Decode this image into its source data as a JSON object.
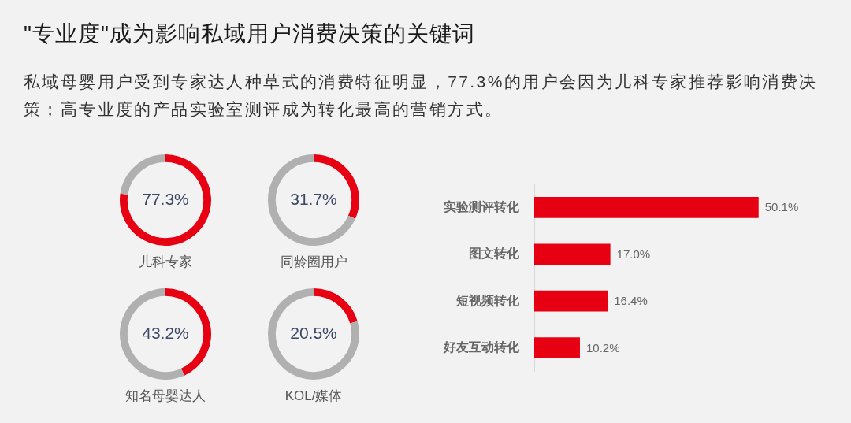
{
  "chart_data": [
    {
      "type": "other",
      "title": "\"专业度\"成为影响私域用户消费决策的关键词",
      "subtitle": "私域母婴用户受到专家达人种草式的消费特征明显，77.3%的用户会因为儿科专家推荐影响消费决策；高专业度的产品实验室测评成为转化最高的营销方式。"
    },
    {
      "type": "donut",
      "title": "儿科专家",
      "categories": [
        null,
        null
      ],
      "values": [
        77.3,
        22.7
      ],
      "value_labels": [
        "77.3%",
        null
      ],
      "colors": [
        "#e60012",
        "#b0b0b0"
      ]
    },
    {
      "type": "donut",
      "title": "同龄圈用户",
      "categories": [
        null,
        null
      ],
      "values": [
        31.7,
        68.3
      ],
      "value_labels": [
        "31.7%",
        null
      ],
      "colors": [
        "#e60012",
        "#b0b0b0"
      ]
    },
    {
      "type": "donut",
      "title": "知名母婴达人",
      "categories": [
        null,
        null
      ],
      "values": [
        43.2,
        56.8
      ],
      "value_labels": [
        "43.2%",
        null
      ],
      "colors": [
        "#e60012",
        "#b0b0b0"
      ]
    },
    {
      "type": "donut",
      "title": "KOL/媒体",
      "categories": [
        null,
        null
      ],
      "values": [
        20.5,
        79.5
      ],
      "value_labels": [
        "20.5%",
        null
      ],
      "colors": [
        "#e60012",
        "#b0b0b0"
      ]
    },
    {
      "type": "bar",
      "orientation": "horizontal",
      "categories": [
        "实验测评转化",
        "图文转化",
        "短视频转化",
        "好友互动转化"
      ],
      "values": [
        50.1,
        17.0,
        16.4,
        10.2
      ],
      "value_labels": [
        "50.1%",
        "17.0%",
        "16.4%",
        "10.2%"
      ],
      "color": "#e60012",
      "tick_labels": "y"
    }
  ]
}
